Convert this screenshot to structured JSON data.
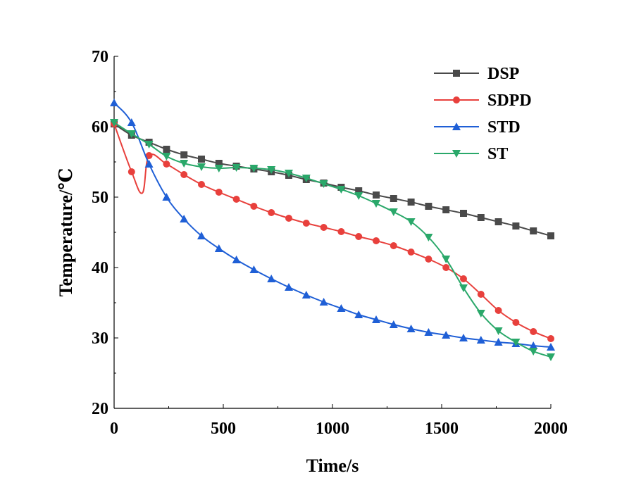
{
  "chart_data": {
    "type": "line",
    "title": "",
    "xlabel": "Time/s",
    "ylabel": "Temperature/℃",
    "xlim": [
      0,
      2000
    ],
    "ylim": [
      20,
      70
    ],
    "xticks": [
      0,
      500,
      1000,
      1500,
      2000
    ],
    "yticks": [
      20,
      30,
      40,
      50,
      60,
      70
    ],
    "xtick_labels": [
      "0",
      "500",
      "1000",
      "1500",
      "2000"
    ],
    "ytick_labels": [
      "20",
      "30",
      "40",
      "50",
      "60",
      "70"
    ],
    "grid": false,
    "legend_position": "top-right",
    "series": [
      {
        "name": "DSP",
        "color": "#4a4a4a",
        "marker": "square",
        "x": [
          0,
          80,
          160,
          240,
          320,
          400,
          480,
          560,
          640,
          720,
          800,
          880,
          960,
          1040,
          1120,
          1200,
          1280,
          1360,
          1440,
          1520,
          1600,
          1680,
          1760,
          1840,
          1920,
          2000
        ],
        "y": [
          60.4,
          58.8,
          57.8,
          56.8,
          56.0,
          55.4,
          54.8,
          54.4,
          54.0,
          53.6,
          53.1,
          52.5,
          52.0,
          51.4,
          50.9,
          50.3,
          49.8,
          49.3,
          48.7,
          48.2,
          47.7,
          47.1,
          46.5,
          45.9,
          45.2,
          44.5
        ]
      },
      {
        "name": "SDPD",
        "color": "#e8403c",
        "marker": "circle",
        "x": [
          0,
          80,
          130,
          160,
          240,
          320,
          400,
          480,
          560,
          640,
          720,
          800,
          880,
          960,
          1040,
          1120,
          1200,
          1280,
          1360,
          1440,
          1520,
          1600,
          1680,
          1760,
          1840,
          1920,
          2000
        ],
        "y": [
          60.4,
          53.6,
          50.6,
          55.9,
          54.7,
          53.2,
          51.8,
          50.7,
          49.7,
          48.7,
          47.8,
          47.0,
          46.3,
          45.7,
          45.1,
          44.4,
          43.8,
          43.1,
          42.2,
          41.2,
          40.0,
          38.4,
          36.2,
          33.9,
          32.2,
          30.9,
          29.9
        ]
      },
      {
        "name": "STD",
        "color": "#1f5fd6",
        "marker": "triangle-up",
        "x": [
          0,
          80,
          160,
          240,
          320,
          400,
          480,
          560,
          640,
          720,
          800,
          880,
          960,
          1040,
          1120,
          1200,
          1280,
          1360,
          1440,
          1520,
          1600,
          1680,
          1760,
          1840,
          1920,
          2000
        ],
        "y": [
          63.4,
          60.6,
          54.7,
          50.0,
          46.9,
          44.5,
          42.7,
          41.1,
          39.7,
          38.4,
          37.2,
          36.1,
          35.1,
          34.2,
          33.3,
          32.6,
          31.9,
          31.3,
          30.8,
          30.4,
          30.0,
          29.7,
          29.4,
          29.2,
          28.9,
          28.7
        ]
      },
      {
        "name": "ST",
        "color": "#2aa86a",
        "marker": "triangle-down",
        "x": [
          0,
          80,
          160,
          240,
          320,
          400,
          480,
          560,
          640,
          720,
          800,
          880,
          960,
          1040,
          1120,
          1200,
          1280,
          1360,
          1440,
          1520,
          1600,
          1680,
          1760,
          1840,
          1920,
          2000
        ],
        "y": [
          60.6,
          59.0,
          57.5,
          55.8,
          54.8,
          54.3,
          54.1,
          54.2,
          54.1,
          53.9,
          53.4,
          52.7,
          51.9,
          51.1,
          50.2,
          49.1,
          47.9,
          46.5,
          44.3,
          41.2,
          37.1,
          33.5,
          31.0,
          29.4,
          28.1,
          27.3
        ]
      }
    ]
  }
}
